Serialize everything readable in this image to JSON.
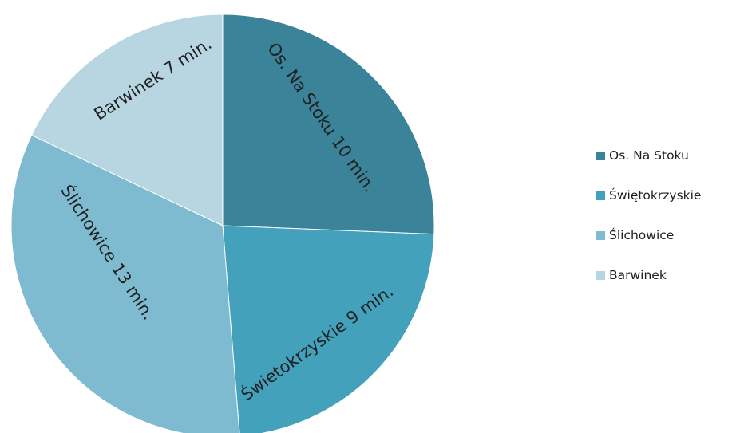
{
  "chart_data": {
    "type": "pie",
    "unit": "min.",
    "start_angle_deg": 0,
    "direction": "clockwise",
    "legend_position": "right",
    "slices": [
      {
        "name": "Os. Na Stoku",
        "value": 10,
        "label": "Os. Na Stoku 10 min.",
        "color": "#3a8399"
      },
      {
        "name": "Świętokrzyskie",
        "value": 9,
        "label": "Świetokrzyskie 9 min.",
        "color": "#44a1bb"
      },
      {
        "name": "Ślichowice",
        "value": 13,
        "label": "Ślichowice 13 min.",
        "color": "#7ebad0"
      },
      {
        "name": "Barwinek",
        "value": 7,
        "label": "Barwinek 7 min.",
        "color": "#b7d6e1"
      }
    ]
  }
}
